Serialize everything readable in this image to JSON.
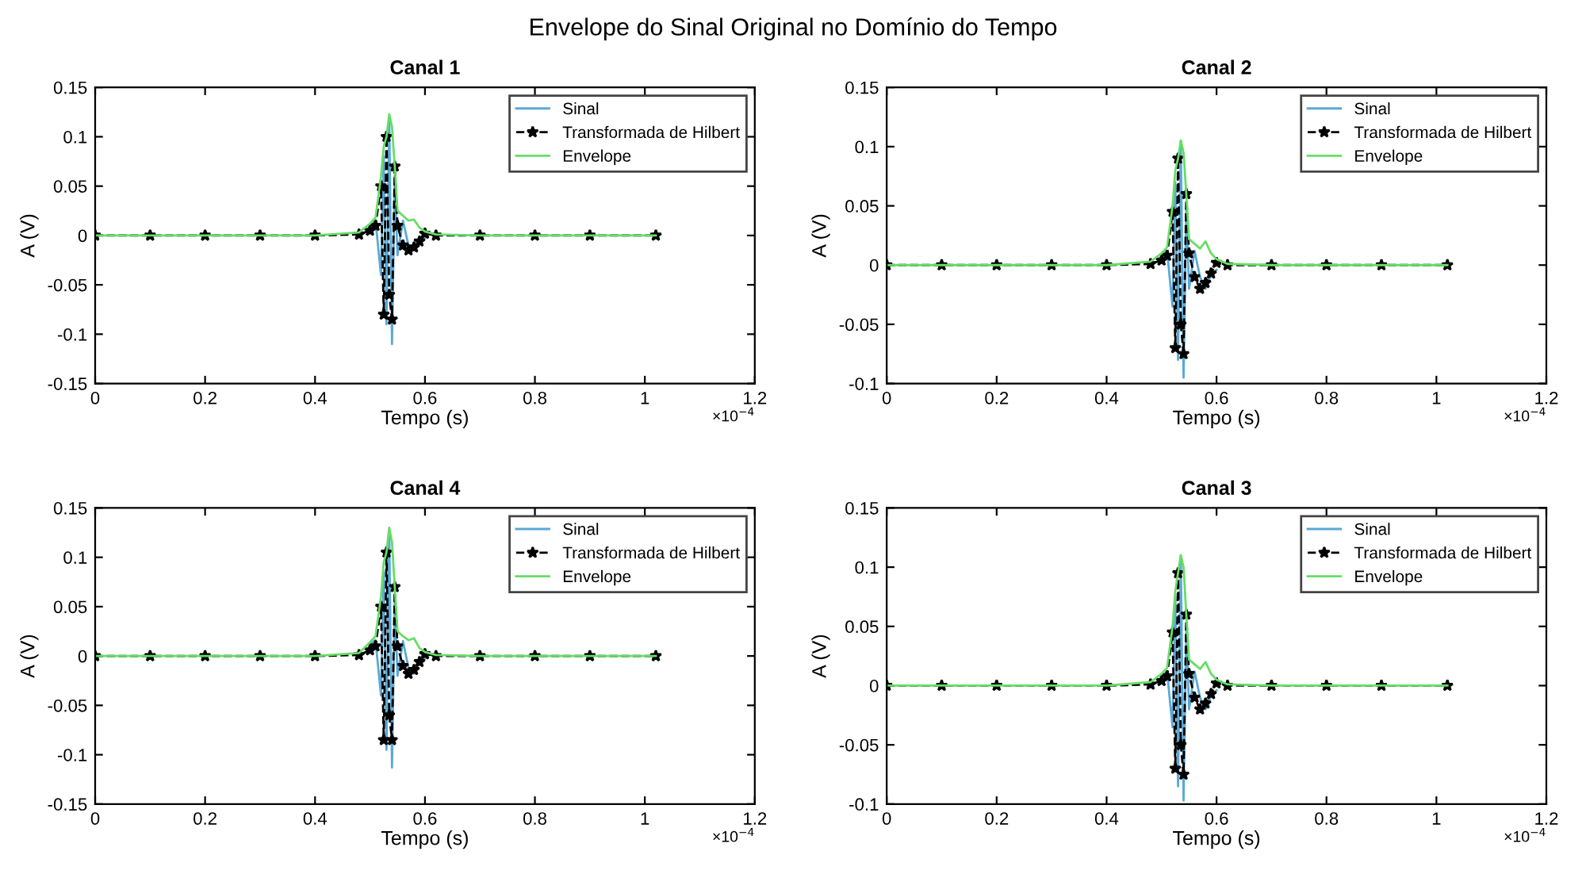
{
  "chart_data": [
    {
      "type": "line",
      "title": "Canal 1",
      "xlabel": "Tempo (s)",
      "ylabel": "A (V)",
      "annotations": [
        "Envelope do Sinal Original no Domínio do Tempo",
        "×10$^{−4}$"
      ],
      "xlim": [
        0,
        1.2
      ],
      "xticks": [
        0,
        0.2,
        0.4,
        0.6,
        0.8,
        1,
        1.2
      ],
      "ylim": [
        -0.15,
        0.15
      ],
      "yticks": [
        -0.15,
        -0.1,
        -0.05,
        0,
        0.05,
        0.1,
        0.15
      ],
      "legend": "top right",
      "x": [
        0,
        0.1,
        0.2,
        0.3,
        0.4,
        0.48,
        0.5,
        0.51,
        0.52,
        0.525,
        0.53,
        0.535,
        0.54,
        0.545,
        0.55,
        0.56,
        0.57,
        0.58,
        0.59,
        0.6,
        0.62,
        0.7,
        0.8,
        0.9,
        1.02
      ],
      "series": [
        {
          "name": "Sinal",
          "color": "#5aa9d6",
          "x": [
            0.5,
            0.51,
            0.52,
            0.525,
            0.53,
            0.535,
            0.54,
            0.545,
            0.55,
            0.56,
            0.57,
            0.58,
            0.59,
            0.6
          ],
          "values": [
            0.01,
            0.015,
            -0.04,
            0.08,
            -0.09,
            0.12,
            -0.11,
            0.06,
            -0.02,
            0.015,
            -0.01,
            -0.015,
            -0.005,
            -0.003
          ]
        },
        {
          "name": "Transformada de Hilbert",
          "color": "#000000",
          "marker": "star",
          "line_style": "dashed",
          "values": [
            0,
            0,
            0,
            0,
            0,
            0.001,
            0.005,
            0.01,
            0.05,
            -0.08,
            0.1,
            -0.06,
            -0.085,
            0.07,
            0.01,
            -0.01,
            -0.015,
            -0.012,
            -0.006,
            0.002,
            0,
            0,
            0,
            0,
            0
          ]
        },
        {
          "name": "Envelope",
          "color": "#66dd66",
          "values": [
            0,
            0,
            0,
            0,
            0,
            0.003,
            0.012,
            0.018,
            0.06,
            0.09,
            0.1,
            0.123,
            0.11,
            0.07,
            0.025,
            0.02,
            0.015,
            0.016,
            0.008,
            0.004,
            0.001,
            0,
            0,
            0,
            0
          ]
        }
      ]
    },
    {
      "type": "line",
      "title": "Canal 2",
      "xlabel": "Tempo (s)",
      "ylabel": "A (V)",
      "annotations": [
        "×10$^{−4}$"
      ],
      "xlim": [
        0,
        1.2
      ],
      "xticks": [
        0,
        0.2,
        0.4,
        0.6,
        0.8,
        1,
        1.2
      ],
      "ylim": [
        -0.1,
        0.15
      ],
      "yticks": [
        -0.1,
        -0.05,
        0,
        0.05,
        0.1,
        0.15
      ],
      "legend": "top right",
      "x": [
        0,
        0.1,
        0.2,
        0.3,
        0.4,
        0.48,
        0.5,
        0.51,
        0.52,
        0.525,
        0.53,
        0.535,
        0.54,
        0.545,
        0.55,
        0.56,
        0.57,
        0.58,
        0.59,
        0.6,
        0.62,
        0.7,
        0.8,
        0.9,
        1.02
      ],
      "series": [
        {
          "name": "Sinal",
          "color": "#5aa9d6",
          "x": [
            0.5,
            0.51,
            0.52,
            0.525,
            0.53,
            0.535,
            0.54,
            0.545,
            0.55,
            0.56,
            0.57,
            0.58,
            0.59,
            0.6
          ],
          "values": [
            0.008,
            0.012,
            -0.035,
            0.07,
            -0.08,
            0.105,
            -0.095,
            0.05,
            -0.02,
            0.012,
            -0.01,
            -0.02,
            -0.008,
            -0.004
          ]
        },
        {
          "name": "Transformada de Hilbert",
          "color": "#000000",
          "marker": "star",
          "line_style": "dashed",
          "values": [
            0,
            0,
            0,
            0,
            0,
            0.001,
            0.004,
            0.008,
            0.045,
            -0.07,
            0.09,
            -0.05,
            -0.075,
            0.06,
            0.01,
            -0.01,
            -0.02,
            -0.015,
            -0.007,
            0.002,
            0,
            0,
            0,
            0,
            0
          ]
        },
        {
          "name": "Envelope",
          "color": "#66dd66",
          "values": [
            0,
            0,
            0,
            0,
            0,
            0.003,
            0.01,
            0.015,
            0.05,
            0.08,
            0.09,
            0.105,
            0.095,
            0.06,
            0.022,
            0.018,
            0.014,
            0.02,
            0.01,
            0.005,
            0.001,
            0,
            0,
            0,
            0
          ]
        }
      ]
    },
    {
      "type": "line",
      "title": "Canal 4",
      "xlabel": "Tempo (s)",
      "ylabel": "A (V)",
      "annotations": [
        "×10$^{−4}$"
      ],
      "xlim": [
        0,
        1.2
      ],
      "xticks": [
        0,
        0.2,
        0.4,
        0.6,
        0.8,
        1,
        1.2
      ],
      "ylim": [
        -0.15,
        0.15
      ],
      "yticks": [
        -0.15,
        -0.1,
        -0.05,
        0,
        0.05,
        0.1,
        0.15
      ],
      "legend": "top right",
      "x": [
        0,
        0.1,
        0.2,
        0.3,
        0.4,
        0.48,
        0.5,
        0.51,
        0.52,
        0.525,
        0.53,
        0.535,
        0.54,
        0.545,
        0.55,
        0.56,
        0.57,
        0.58,
        0.59,
        0.6,
        0.62,
        0.7,
        0.8,
        0.9,
        1.02
      ],
      "series": [
        {
          "name": "Sinal",
          "color": "#5aa9d6",
          "x": [
            0.5,
            0.51,
            0.52,
            0.525,
            0.53,
            0.535,
            0.54,
            0.545,
            0.55,
            0.56,
            0.57,
            0.58,
            0.59,
            0.6
          ],
          "values": [
            0.012,
            0.016,
            -0.04,
            0.085,
            -0.095,
            0.128,
            -0.113,
            0.06,
            -0.02,
            0.015,
            -0.012,
            -0.018,
            -0.006,
            -0.003
          ]
        },
        {
          "name": "Transformada de Hilbert",
          "color": "#000000",
          "marker": "star",
          "line_style": "dashed",
          "values": [
            0,
            0,
            0,
            0,
            0,
            0.001,
            0.006,
            0.01,
            0.05,
            -0.085,
            0.105,
            -0.06,
            -0.085,
            0.07,
            0.01,
            -0.01,
            -0.018,
            -0.014,
            -0.006,
            0.002,
            0,
            0,
            0,
            0,
            0
          ]
        },
        {
          "name": "Envelope",
          "color": "#66dd66",
          "values": [
            0,
            0,
            0,
            0,
            0,
            0.003,
            0.014,
            0.02,
            0.06,
            0.095,
            0.105,
            0.13,
            0.115,
            0.07,
            0.025,
            0.02,
            0.016,
            0.018,
            0.008,
            0.004,
            0.001,
            0,
            0,
            0,
            0
          ]
        }
      ]
    },
    {
      "type": "line",
      "title": "Canal 3",
      "xlabel": "Tempo (s)",
      "ylabel": "A (V)",
      "annotations": [
        "×10$^{−4}$"
      ],
      "xlim": [
        0,
        1.2
      ],
      "xticks": [
        0,
        0.2,
        0.4,
        0.6,
        0.8,
        1,
        1.2
      ],
      "ylim": [
        -0.1,
        0.15
      ],
      "yticks": [
        -0.1,
        -0.05,
        0,
        0.05,
        0.1,
        0.15
      ],
      "legend": "top right",
      "x": [
        0,
        0.1,
        0.2,
        0.3,
        0.4,
        0.48,
        0.5,
        0.51,
        0.52,
        0.525,
        0.53,
        0.535,
        0.54,
        0.545,
        0.55,
        0.56,
        0.57,
        0.58,
        0.59,
        0.6,
        0.62,
        0.7,
        0.8,
        0.9,
        1.02
      ],
      "series": [
        {
          "name": "Sinal",
          "color": "#5aa9d6",
          "x": [
            0.5,
            0.51,
            0.52,
            0.525,
            0.53,
            0.535,
            0.54,
            0.545,
            0.55,
            0.56,
            0.57,
            0.58,
            0.59,
            0.6
          ],
          "values": [
            0.008,
            0.012,
            -0.035,
            0.075,
            -0.085,
            0.11,
            -0.097,
            0.05,
            -0.02,
            0.012,
            -0.01,
            -0.02,
            -0.008,
            -0.004
          ]
        },
        {
          "name": "Transformada de Hilbert",
          "color": "#000000",
          "marker": "star",
          "line_style": "dashed",
          "values": [
            0,
            0,
            0,
            0,
            0,
            0.001,
            0.004,
            0.008,
            0.045,
            -0.07,
            0.095,
            -0.05,
            -0.075,
            0.06,
            0.01,
            -0.01,
            -0.02,
            -0.015,
            -0.007,
            0.002,
            0,
            0,
            0,
            0,
            0
          ]
        },
        {
          "name": "Envelope",
          "color": "#66dd66",
          "values": [
            0,
            0,
            0,
            0,
            0,
            0.003,
            0.01,
            0.015,
            0.05,
            0.08,
            0.095,
            0.11,
            0.1,
            0.06,
            0.022,
            0.018,
            0.014,
            0.02,
            0.01,
            0.005,
            0.001,
            0,
            0,
            0,
            0
          ]
        }
      ]
    }
  ]
}
